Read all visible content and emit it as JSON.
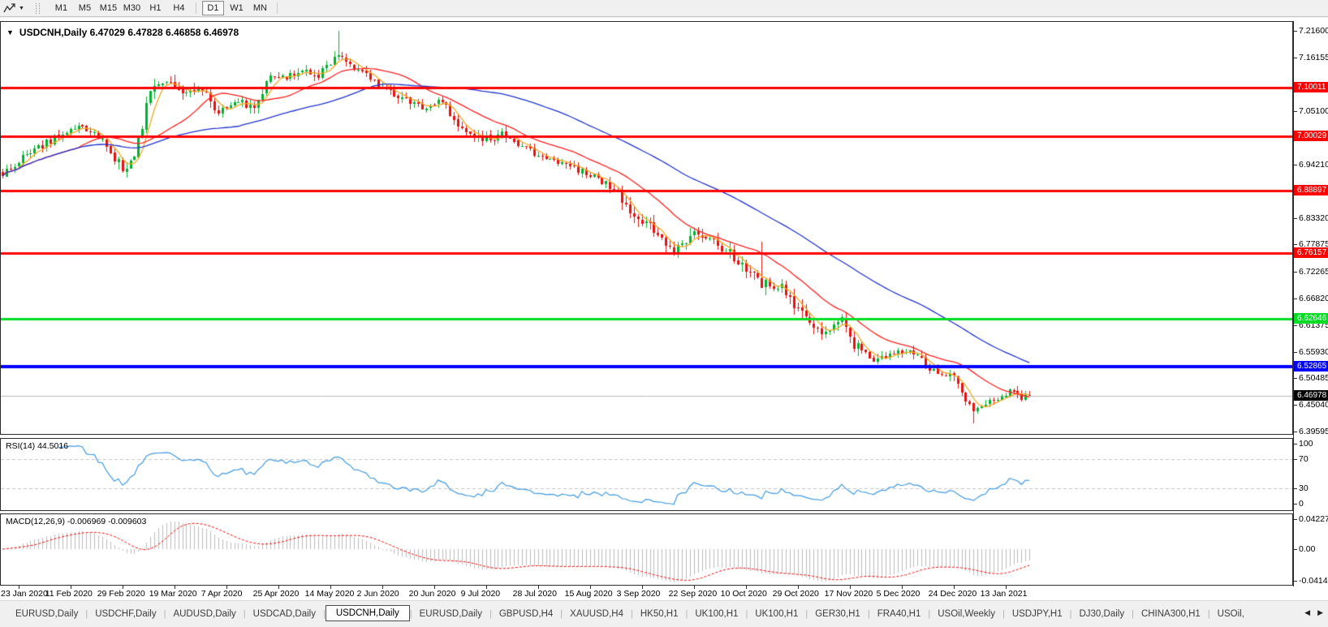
{
  "toolbar": {
    "timeframes": [
      "M1",
      "M5",
      "M15",
      "M30",
      "H1",
      "H4",
      "D1",
      "W1",
      "MN"
    ],
    "active_timeframe": "D1"
  },
  "chart": {
    "symbol": "USDCNH",
    "timeframe": "Daily",
    "title": "USDCNH,Daily  6.47029 6.47828 6.46858 6.46978"
  },
  "chart_data": {
    "type": "candlestick",
    "title": "USDCNH,Daily",
    "ohlc_quote": {
      "open": 6.47029,
      "high": 6.47828,
      "low": 6.46858,
      "close": 6.46978
    },
    "y_axis_ticks": [
      {
        "label": "7.21600",
        "price": 7.216
      },
      {
        "label": "7.16155",
        "price": 7.16155
      },
      {
        "label": "7.05100",
        "price": 7.051
      },
      {
        "label": "6.94210",
        "price": 6.9421
      },
      {
        "label": "6.83320",
        "price": 6.8332
      },
      {
        "label": "6.77875",
        "price": 6.77875
      },
      {
        "label": "6.72265",
        "price": 6.72265
      },
      {
        "label": "6.66820",
        "price": 6.6682
      },
      {
        "label": "6.61375",
        "price": 6.61375
      },
      {
        "label": "6.55930",
        "price": 6.5593
      },
      {
        "label": "6.50485",
        "price": 6.50485
      },
      {
        "label": "6.45040",
        "price": 6.4504
      },
      {
        "label": "6.39595",
        "price": 6.39595
      }
    ],
    "horizontal_lines": [
      {
        "label": "7.10011",
        "price": 7.10011,
        "color": "#ff0000",
        "thickness": 3
      },
      {
        "label": "7.00029",
        "price": 7.00029,
        "color": "#ff0000",
        "thickness": 3
      },
      {
        "label": "6.88897",
        "price": 6.88897,
        "color": "#ff0000",
        "thickness": 3
      },
      {
        "label": "6.76157",
        "price": 6.76157,
        "color": "#ff0000",
        "thickness": 3
      },
      {
        "label": "6.62646",
        "price": 6.62646,
        "color": "#00dd22",
        "thickness": 3
      },
      {
        "label": "6.52865",
        "price": 6.52865,
        "color": "#0000ff",
        "thickness": 4
      }
    ],
    "current_price": {
      "label": "6.46978",
      "price": 6.46978,
      "line_color": "#b8b8b8",
      "flag_bg": "#000000"
    },
    "x_axis_ticks": [
      {
        "bar": 4,
        "label": "23 Jan 2020"
      },
      {
        "bar": 17,
        "label": "11 Feb 2020"
      },
      {
        "bar": 30,
        "label": "29 Feb 2020"
      },
      {
        "bar": 43,
        "label": "19 Mar 2020"
      },
      {
        "bar": 56,
        "label": "7 Apr 2020"
      },
      {
        "bar": 69,
        "label": "25 Apr 2020"
      },
      {
        "bar": 82,
        "label": "14 May 2020"
      },
      {
        "bar": 95,
        "label": "2 Jun 2020"
      },
      {
        "bar": 108,
        "label": "20 Jun 2020"
      },
      {
        "bar": 121,
        "label": "9 Jul 2020"
      },
      {
        "bar": 134,
        "label": "28 Jul 2020"
      },
      {
        "bar": 147,
        "label": "15 Aug 2020"
      },
      {
        "bar": 160,
        "label": "3 Sep 2020"
      },
      {
        "bar": 173,
        "label": "22 Sep 2020"
      },
      {
        "bar": 186,
        "label": "10 Oct 2020"
      },
      {
        "bar": 199,
        "label": "29 Oct 2020"
      },
      {
        "bar": 212,
        "label": "17 Nov 2020"
      },
      {
        "bar": 225,
        "label": "5 Dec 2020"
      },
      {
        "bar": 238,
        "label": "24 Dec 2020"
      },
      {
        "bar": 251,
        "label": "13 Jan 2021"
      }
    ],
    "bars": 258,
    "price_path_anchors": [
      [
        0,
        6.925
      ],
      [
        6,
        6.962
      ],
      [
        13,
        6.995
      ],
      [
        19,
        7.02
      ],
      [
        25,
        6.995
      ],
      [
        30,
        6.932
      ],
      [
        33,
        6.95
      ],
      [
        37,
        7.1
      ],
      [
        40,
        7.115
      ],
      [
        44,
        7.085
      ],
      [
        49,
        7.1
      ],
      [
        54,
        7.05
      ],
      [
        59,
        7.072
      ],
      [
        63,
        7.058
      ],
      [
        67,
        7.13
      ],
      [
        71,
        7.12
      ],
      [
        75,
        7.14
      ],
      [
        79,
        7.125
      ],
      [
        84,
        7.168
      ],
      [
        87,
        7.15
      ],
      [
        90,
        7.132
      ],
      [
        95,
        7.1
      ],
      [
        100,
        7.078
      ],
      [
        105,
        7.062
      ],
      [
        110,
        7.072
      ],
      [
        115,
        7.01
      ],
      [
        120,
        6.992
      ],
      [
        125,
        7.003
      ],
      [
        130,
        6.975
      ],
      [
        135,
        6.958
      ],
      [
        140,
        6.943
      ],
      [
        145,
        6.928
      ],
      [
        150,
        6.91
      ],
      [
        154,
        6.885
      ],
      [
        159,
        6.832
      ],
      [
        164,
        6.8
      ],
      [
        168,
        6.768
      ],
      [
        172,
        6.8
      ],
      [
        177,
        6.786
      ],
      [
        182,
        6.758
      ],
      [
        187,
        6.72
      ],
      [
        190,
        6.7
      ],
      [
        195,
        6.688
      ],
      [
        200,
        6.64
      ],
      [
        205,
        6.602
      ],
      [
        210,
        6.625
      ],
      [
        213,
        6.572
      ],
      [
        218,
        6.545
      ],
      [
        223,
        6.556
      ],
      [
        228,
        6.558
      ],
      [
        233,
        6.52
      ],
      [
        238,
        6.505
      ],
      [
        241,
        6.455
      ],
      [
        244,
        6.438
      ],
      [
        247,
        6.455
      ],
      [
        250,
        6.47
      ],
      [
        253,
        6.478
      ],
      [
        255,
        6.465
      ],
      [
        257,
        6.4698
      ]
    ],
    "extremes": {
      "peak_bar": 84,
      "peak_high": 7.216,
      "spike_bar": 190,
      "spike_high": 6.785,
      "trough_bar": 243,
      "trough_low": 6.412
    },
    "candle_colors": {
      "up": "#00b22d",
      "down": "#e41111"
    },
    "moving_averages": [
      {
        "period": 5,
        "color": "#f5a623"
      },
      {
        "period": 20,
        "color": "#ff2020"
      },
      {
        "period": 60,
        "color": "#2233cc"
      }
    ],
    "rsi": {
      "label": "RSI(14) 44.5016",
      "period": 14,
      "value": 44.5016,
      "color": "#429ae0",
      "levels": [
        70,
        30
      ],
      "axis_labels": [
        {
          "label": "100",
          "value": 100
        },
        {
          "label": "70",
          "value": 70
        },
        {
          "label": "30",
          "value": 30
        },
        {
          "label": "0",
          "value": 0
        }
      ]
    },
    "macd": {
      "label": "MACD(12,26,9) -0.006969 -0.009603",
      "fast": 12,
      "slow": 26,
      "signal_period": 9,
      "macd_value": -0.006969,
      "signal_value": -0.009603,
      "histogram_color": "#bbbbbb",
      "signal_color": "#ff0000",
      "axis_labels": [
        {
          "label": "0.042275",
          "value": 0.042275
        },
        {
          "label": "0.00",
          "value": 0
        },
        {
          "label": "-0.04148",
          "value": -0.04148
        }
      ]
    }
  },
  "tabs": {
    "items": [
      "EURUSD,Daily",
      "USDCHF,Daily",
      "AUDUSD,Daily",
      "USDCAD,Daily",
      "USDCNH,Daily",
      "EURUSD,Daily",
      "GBPUSD,H4",
      "XAUUSD,H4",
      "HK50,H1",
      "UK100,H1",
      "UK100,H1",
      "GER30,H1",
      "FRA40,H1",
      "USOil,Weekly",
      "USDJPY,H1",
      "DJ30,Daily",
      "CHINA300,H1",
      "USOil,"
    ],
    "active_index": 4
  }
}
